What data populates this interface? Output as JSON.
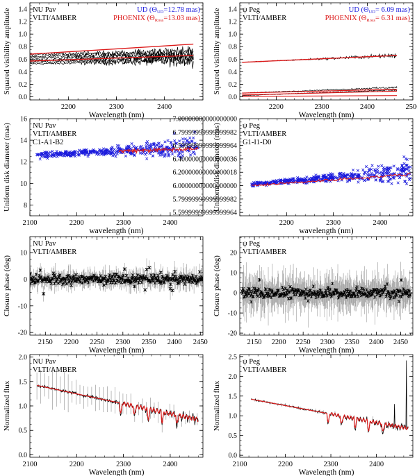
{
  "chart_data": [
    {
      "id": "p1",
      "type": "line",
      "ylabel": "Squared visibility amplitude",
      "xlabel": "Wavelength (nm)",
      "xlim": [
        2120,
        2480
      ],
      "ylim": [
        -0.05,
        1.5
      ],
      "xticks": [
        2200,
        2300,
        2400
      ],
      "yticks": [
        0.0,
        0.2,
        0.4,
        0.6,
        0.8,
        1.0,
        1.2,
        1.4
      ],
      "texts": [
        "NU Pav",
        "VLTI/AMBER"
      ],
      "legend": [
        {
          "text": "UD (Θ",
          "sub": "UD",
          "tail": "=12.78 mas)",
          "color": "#1a1adc"
        },
        {
          "text": "PHOENIX (Θ",
          "sub": "Ross",
          "tail": "=13.03 mas)",
          "color": "#dc1a1a"
        }
      ],
      "series": [
        {
          "style": "obs",
          "color": "#000000",
          "x": [
            2120,
            2460
          ],
          "y": [
            0.6,
            0.65
          ],
          "count": 6,
          "spread": 0.15,
          "noise": [
            0.02,
            0.12
          ]
        },
        {
          "style": "model",
          "color": "#dc1a1a",
          "x": [
            2120,
            2460
          ],
          "y": [
            0.68,
            0.84
          ],
          "width": 1.4
        },
        {
          "style": "model",
          "color": "#dc1a1a",
          "x": [
            2120,
            2460
          ],
          "y": [
            0.57,
            0.66
          ],
          "width": 1.4
        }
      ]
    },
    {
      "id": "p2",
      "type": "line",
      "ylabel": "Squared visibility amplitude",
      "xlabel": "Wavelength (nm)",
      "xlim": [
        2120,
        2500
      ],
      "ylim": [
        -0.05,
        1.5
      ],
      "xticks": [
        2200,
        2300,
        2400,
        2500
      ],
      "yticks": [
        0.0,
        0.2,
        0.4,
        0.6,
        0.8,
        1.0,
        1.2,
        1.4
      ],
      "texts": [
        "ψ Peg",
        "VLTI/AMBER"
      ],
      "legend": [
        {
          "text": "UD (Θ",
          "sub": "UD",
          "tail": "= 6.09 mas)",
          "color": "#1a1adc"
        },
        {
          "text": "PHOENIX (Θ",
          "sub": "Ross",
          "tail": "= 6.31 mas)",
          "color": "#dc1a1a"
        }
      ],
      "series": [
        {
          "style": "obs",
          "color": "#000000",
          "x": [
            2125,
            2465
          ],
          "y": [
            0.55,
            0.66
          ],
          "count": 1,
          "spread": 0,
          "noise": [
            0.005,
            0.05
          ]
        },
        {
          "style": "obs",
          "color": "#000000",
          "x": [
            2125,
            2465
          ],
          "y": [
            0.04,
            0.13
          ],
          "count": 2,
          "spread": 0.04,
          "noise": [
            0.005,
            0.02
          ]
        },
        {
          "style": "model",
          "color": "#dc1a1a",
          "x": [
            2125,
            2465
          ],
          "y": [
            0.55,
            0.66
          ],
          "width": 1.4
        },
        {
          "style": "model",
          "color": "#dc1a1a",
          "x": [
            2125,
            2465
          ],
          "y": [
            0.06,
            0.12
          ],
          "width": 1.2
        },
        {
          "style": "model",
          "color": "#dc1a1a",
          "x": [
            2125,
            2465
          ],
          "y": [
            0.03,
            0.09
          ],
          "width": 1.2
        },
        {
          "style": "model",
          "color": "#dc1a1a",
          "x": [
            2125,
            2465
          ],
          "y": [
            0.005,
            0.02
          ],
          "width": 1.2
        }
      ]
    },
    {
      "id": "p3",
      "type": "scatter",
      "ylabel": "Uniform disk diameter (mas)",
      "xlabel": "wavelength (nm)",
      "xlim": [
        2100,
        2470
      ],
      "ylim": [
        7,
        16
      ],
      "xticks": [
        2100,
        2200,
        2300,
        2400
      ],
      "yticks": [
        8,
        10,
        12,
        14,
        16
      ],
      "texts": [
        "NU Pav",
        "VLTI/AMBER",
        "C1-A1-B2"
      ],
      "series": [
        {
          "style": "cross",
          "color": "#1a1adc",
          "x": [
            2115,
            2460
          ],
          "y": [
            12.6,
            13.4
          ],
          "count": 420,
          "noise": [
            0.35,
            1.8
          ]
        },
        {
          "style": "model",
          "color": "#dc1a1a",
          "x": [
            2290,
            2460
          ],
          "y": [
            13.0,
            13.2
          ],
          "width": 1.1,
          "jitter": 0.25
        }
      ]
    },
    {
      "id": "p4",
      "type": "scatter",
      "ylabel": "Uniform disk diameter (mas)",
      "xlabel": "wavelength (nm)",
      "xlim": [
        2100,
        2470
      ],
      "ylim": [
        5.55,
        7.0
      ],
      "xticks": [
        2200,
        2300,
        2400
      ],
      "yticks": [
        5.6,
        5.8,
        6.0,
        6.2,
        6.4,
        6.6,
        6.8,
        7.0
      ],
      "texts": [
        "ψ Peg",
        "VLTI/AMBER",
        "G1-I1-D0"
      ],
      "series": [
        {
          "style": "cross",
          "color": "#1a1adc",
          "x": [
            2125,
            2465
          ],
          "y": [
            6.02,
            6.22
          ],
          "count": 460,
          "noise": [
            0.04,
            0.28
          ]
        },
        {
          "style": "model",
          "color": "#dc1a1a",
          "x": [
            2125,
            2465
          ],
          "y": [
            6.0,
            6.17
          ],
          "width": 1.1,
          "jitter": 0.03
        }
      ]
    },
    {
      "id": "p5",
      "type": "scatter",
      "ylabel": "Closure phase (deg)",
      "xlabel": "Wavelength (nm)",
      "xlim": [
        2120,
        2455
      ],
      "ylim": [
        -21,
        16
      ],
      "xticks": [
        2150,
        2200,
        2250,
        2300,
        2350,
        2400,
        2450
      ],
      "yticks": [
        -20,
        -10,
        0,
        10
      ],
      "texts": [
        "NU Pav",
        "VLTI/AMBER"
      ],
      "series": [
        {
          "style": "errstar",
          "color": "#000000",
          "x": [
            2120,
            2455
          ],
          "y": [
            0,
            0
          ],
          "count": 330,
          "noise": [
            2.0,
            4.0
          ],
          "err": [
            1.5,
            6.0
          ]
        }
      ]
    },
    {
      "id": "p6",
      "type": "scatter",
      "ylabel": "Closure phase (deg)",
      "xlabel": "Wavelength (nm)",
      "xlim": [
        2120,
        2475
      ],
      "ylim": [
        -21,
        28
      ],
      "xticks": [
        2150,
        2200,
        2250,
        2300,
        2350,
        2400,
        2450
      ],
      "yticks": [
        -20,
        -10,
        0,
        10,
        20
      ],
      "texts": [
        "ψ Peg",
        "VLTI/AMBER"
      ],
      "series": [
        {
          "style": "errstar",
          "color": "#000000",
          "x": [
            2125,
            2470
          ],
          "y": [
            0,
            0
          ],
          "count": 330,
          "noise": [
            3.0,
            5.0
          ],
          "err": [
            4.0,
            16.0
          ]
        }
      ]
    },
    {
      "id": "p7",
      "type": "line",
      "ylabel": "Normalized flux",
      "xlabel": "Wavelength (nm)",
      "xlim": [
        2100,
        2470
      ],
      "ylim": [
        -0.05,
        2.05
      ],
      "xticks": [
        2100,
        2200,
        2300,
        2400
      ],
      "yticks": [
        0.0,
        0.5,
        1.0,
        1.5,
        2.0
      ],
      "texts": [
        "NU Pav",
        "VLTI/AMBER"
      ],
      "series": [
        {
          "style": "spectrum",
          "color": "#000000",
          "x": [
            2115,
            2460
          ],
          "y": [
            1.42,
            0.72
          ],
          "noise": [
            0.03,
            0.09
          ],
          "err": [
            0.35,
            0.1
          ],
          "absorb": [
            2294,
            2323,
            2353,
            2383,
            2414
          ],
          "depth": 0.22
        },
        {
          "style": "modelspec",
          "color": "#dc1a1a",
          "x": [
            2115,
            2460
          ],
          "y": [
            1.42,
            0.72
          ],
          "absorb": [
            2294,
            2323,
            2353,
            2383,
            2414
          ],
          "depth": 0.2
        }
      ]
    },
    {
      "id": "p8",
      "type": "line",
      "ylabel": "Normalized flux",
      "xlabel": "Wavelength (nm)",
      "xlim": [
        2100,
        2480
      ],
      "ylim": [
        -0.05,
        2.55
      ],
      "xticks": [
        2100,
        2200,
        2300,
        2400
      ],
      "yticks": [
        0.0,
        0.5,
        1.0,
        1.5,
        2.0,
        2.5
      ],
      "texts": [
        "ψ Peg",
        "VLTI/AMBER"
      ],
      "series": [
        {
          "style": "spectrum",
          "color": "#000000",
          "x": [
            2125,
            2470
          ],
          "y": [
            1.42,
            0.68
          ],
          "noise": [
            0.02,
            0.08
          ],
          "err": [
            0.03,
            0.06
          ],
          "absorb": [
            2294,
            2323,
            2353,
            2383,
            2414
          ],
          "depth": 0.25,
          "spikes": [
            [
              2440,
              1.3
            ],
            [
              2466,
              2.4
            ]
          ]
        },
        {
          "style": "modelspec",
          "color": "#dc1a1a",
          "x": [
            2125,
            2470
          ],
          "y": [
            1.42,
            0.68
          ],
          "absorb": [
            2294,
            2323,
            2353,
            2383,
            2414
          ],
          "depth": 0.22
        }
      ]
    }
  ]
}
